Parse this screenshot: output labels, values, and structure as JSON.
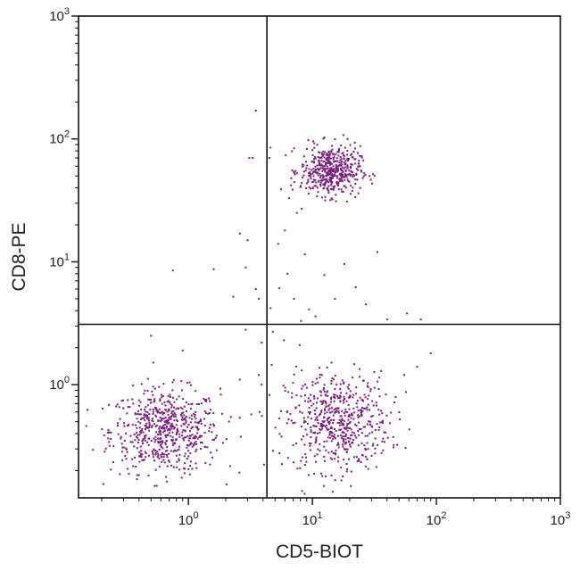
{
  "chart_data": {
    "type": "scatter",
    "title": "",
    "xlabel": "CD5-BIOT",
    "ylabel": "CD8-PE",
    "x_scale": "log",
    "y_scale": "log",
    "xlim": [
      0.13,
      1000
    ],
    "ylim": [
      0.12,
      1000
    ],
    "x_ticks": [
      {
        "base": "10",
        "exp": "0",
        "value": 1
      },
      {
        "base": "10",
        "exp": "1",
        "value": 10
      },
      {
        "base": "10",
        "exp": "2",
        "value": 100
      },
      {
        "base": "10",
        "exp": "3",
        "value": 1000
      }
    ],
    "y_ticks": [
      {
        "base": "10",
        "exp": "0",
        "value": 1
      },
      {
        "base": "10",
        "exp": "1",
        "value": 10
      },
      {
        "base": "10",
        "exp": "2",
        "value": 100
      },
      {
        "base": "10",
        "exp": "3",
        "value": 1000
      }
    ],
    "gates": {
      "x": 4.3,
      "y": 3.1
    },
    "grid": false,
    "point_color": "#7a1f7d",
    "populations": [
      {
        "center": [
          0.65,
          0.42
        ],
        "spread_log10": [
          0.22,
          0.17
        ],
        "count": 620
      },
      {
        "center": [
          16,
          0.5
        ],
        "spread_log10": [
          0.21,
          0.2
        ],
        "count": 560
      },
      {
        "center": [
          14,
          55
        ],
        "spread_log10": [
          0.12,
          0.1
        ],
        "count": 480
      }
    ],
    "sparse_points": [
      [
        3.5,
        170
      ],
      [
        3.3,
        70
      ],
      [
        3.1,
        70
      ],
      [
        4.6,
        85
      ],
      [
        4.5,
        70
      ],
      [
        0.75,
        8.5
      ],
      [
        1.6,
        8.7
      ],
      [
        2.6,
        17
      ],
      [
        3.0,
        15
      ],
      [
        2.9,
        9
      ],
      [
        3.5,
        6
      ],
      [
        3.7,
        5
      ],
      [
        2.3,
        5.2
      ],
      [
        4.6,
        4.2
      ],
      [
        5.4,
        6.1
      ],
      [
        6.3,
        8.0
      ],
      [
        7.1,
        5.0
      ],
      [
        8.7,
        11.5
      ],
      [
        9.4,
        4.1
      ],
      [
        10.6,
        3.6
      ],
      [
        12.5,
        7.8
      ],
      [
        15.2,
        5.0
      ],
      [
        18.1,
        9.6
      ],
      [
        22.4,
        6.2
      ],
      [
        27.0,
        4.5
      ],
      [
        33.5,
        12.0
      ],
      [
        40.1,
        3.4
      ],
      [
        58.0,
        3.8
      ],
      [
        75.0,
        3.4
      ],
      [
        6.0,
        18
      ],
      [
        7.5,
        25
      ],
      [
        5.3,
        14
      ],
      [
        8.1,
        3.3
      ],
      [
        5.9,
        2.3
      ],
      [
        7.9,
        2.1
      ],
      [
        4.8,
        2.7
      ],
      [
        2.9,
        2.8
      ],
      [
        0.5,
        2.5
      ],
      [
        3.9,
        2.2
      ],
      [
        0.9,
        1.9
      ],
      [
        90,
        1.8
      ],
      [
        70,
        1.4
      ],
      [
        55,
        1.2
      ],
      [
        3.7,
        1.2
      ],
      [
        4.7,
        1.45
      ],
      [
        2.6,
        1.1
      ],
      [
        8.2,
        27
      ],
      [
        6.5,
        33
      ],
      [
        11,
        40
      ],
      [
        3.9,
        1.0
      ]
    ]
  }
}
